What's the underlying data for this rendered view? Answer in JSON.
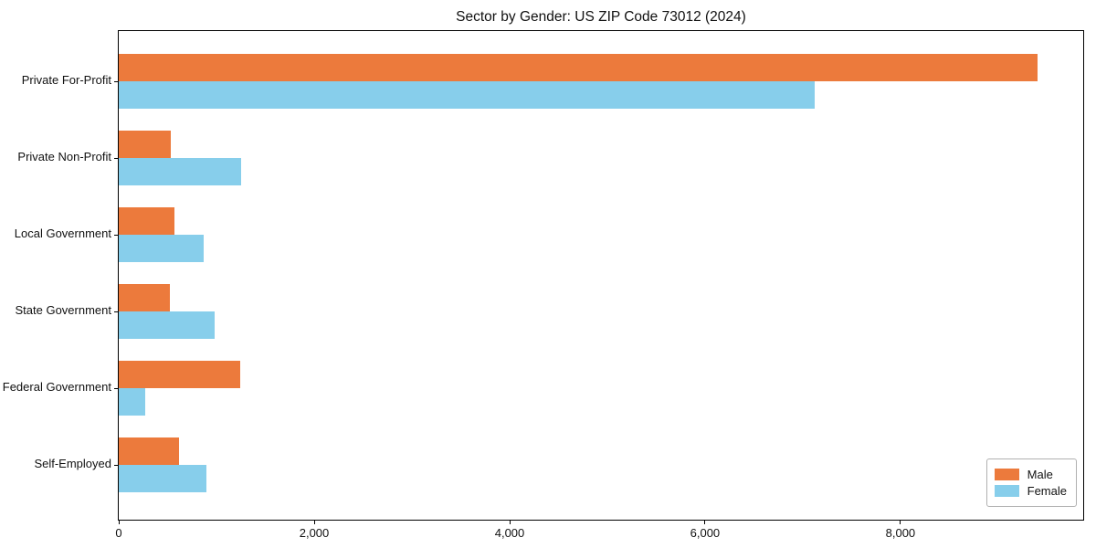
{
  "chart_data": {
    "type": "bar",
    "orientation": "horizontal",
    "title": "Sector by Gender: US ZIP Code 73012 (2024)",
    "categories": [
      "Private For-Profit",
      "Private Non-Profit",
      "Local Government",
      "State Government",
      "Federal Government",
      "Self-Employed"
    ],
    "series": [
      {
        "name": "Male",
        "color": "#ec7a3c",
        "values": [
          9400,
          530,
          570,
          520,
          1240,
          620
        ]
      },
      {
        "name": "Female",
        "color": "#87ceeb",
        "values": [
          7120,
          1250,
          870,
          980,
          270,
          900
        ]
      }
    ],
    "xlabel": "",
    "ylabel": "",
    "xlim": [
      0,
      9870
    ],
    "xticks": [
      0,
      2000,
      4000,
      6000,
      8000
    ],
    "xtick_labels": [
      "0",
      "2,000",
      "4,000",
      "6,000",
      "8,000"
    ],
    "grid": false,
    "legend": {
      "position": "lower-right",
      "entries": [
        "Male",
        "Female"
      ]
    },
    "frame": true,
    "background": "#ffffff",
    "text_color": "#111111"
  }
}
